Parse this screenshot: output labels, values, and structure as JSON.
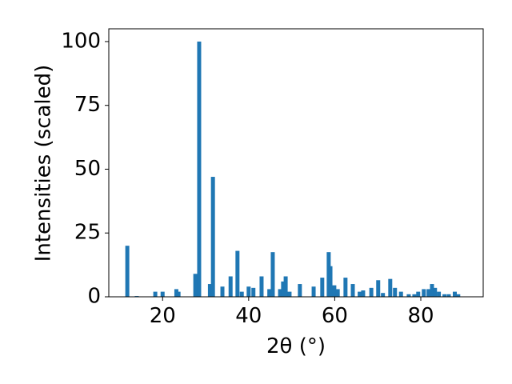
{
  "chart_data": {
    "type": "bar",
    "xlabel": "2θ (°)",
    "ylabel": "Intensities (scaled)",
    "x": [
      11.8,
      14.0,
      18.3,
      20.0,
      23.2,
      23.7,
      27.6,
      28.5,
      31.0,
      31.7,
      33.9,
      35.8,
      37.4,
      38.4,
      40.0,
      41.1,
      43.0,
      44.8,
      45.6,
      47.3,
      48.0,
      48.6,
      49.5,
      51.9,
      55.1,
      57.1,
      58.6,
      59.0,
      59.9,
      60.7,
      62.5,
      64.2,
      65.8,
      66.6,
      68.5,
      70.1,
      71.2,
      72.9,
      74.0,
      75.4,
      77.2,
      78.5,
      79.4,
      80.7,
      81.8,
      82.6,
      83.3,
      84.2,
      85.5,
      86.5,
      87.9,
      88.7
    ],
    "values": [
      20,
      0.3,
      2,
      2,
      3,
      2,
      9,
      100,
      5,
      47,
      4,
      8,
      18,
      2,
      4,
      3.5,
      8,
      3,
      17.5,
      3,
      6,
      8,
      2,
      5,
      4,
      7.5,
      17.5,
      12,
      4.5,
      3,
      7.5,
      5,
      2,
      2.5,
      3.5,
      6.5,
      1.5,
      7,
      3.5,
      2,
      1,
      1,
      2,
      3,
      3,
      5,
      3.5,
      2,
      1,
      1,
      2,
      1
    ],
    "color": "#1f77b4",
    "xlim": [
      7.5,
      94.5
    ],
    "xticks": [
      20,
      40,
      60,
      80
    ],
    "ylim": [
      0,
      105
    ],
    "yticks": [
      0,
      25,
      50,
      75,
      100
    ]
  }
}
